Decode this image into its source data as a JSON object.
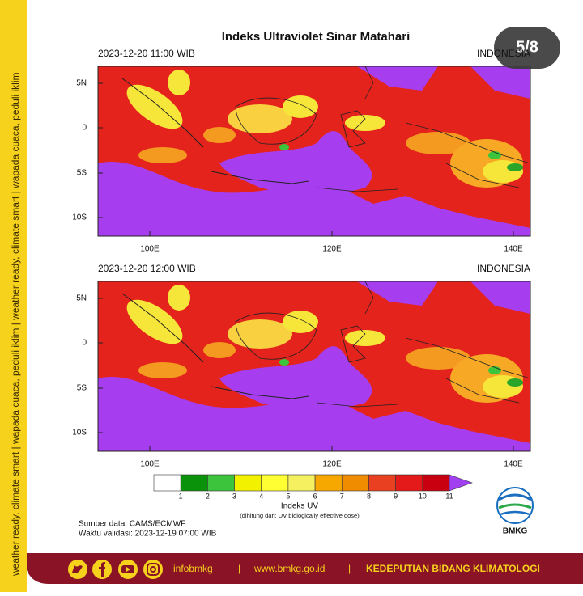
{
  "sidebar_text": "weather ready, climate smart | wapada cuaca, peduli iklim | weather ready, climate smart | wapada cuaca, peduli iklim",
  "page_indicator": "5/8",
  "title": "Indeks Ultraviolet Sinar Matahari",
  "maps": [
    {
      "time": "2023-12-20  11:00 WIB",
      "region": "INDONESIA",
      "lat_labels": [
        "5N",
        "0",
        "5S",
        "10S"
      ],
      "lon_labels": [
        "100E",
        "120E",
        "140E"
      ]
    },
    {
      "time": "2023-12-20  12:00 WIB",
      "region": "INDONESIA",
      "lat_labels": [
        "5N",
        "0",
        "5S",
        "10S"
      ],
      "lon_labels": [
        "100E",
        "120E",
        "140E"
      ]
    }
  ],
  "colorbar": {
    "ticks": [
      1,
      2,
      3,
      4,
      5,
      6,
      7,
      8,
      9,
      10,
      11
    ],
    "colors": [
      "#ffffff",
      "#0a930a",
      "#3cc43c",
      "#f2f200",
      "#ffff33",
      "#f4f060",
      "#f6a800",
      "#f08c00",
      "#e84020",
      "#e41a1a",
      "#c80010"
    ],
    "over_color": "#a040f0",
    "label": "Indeks UV",
    "note": "(dihitung dari: UV biologically effective dose)"
  },
  "source": "Sumber data: CAMS/ECMWF",
  "validity": "Waktu validasi: 2023-12-19 07:00 WIB",
  "logo_text": "BMKG",
  "footer": {
    "handle": "infobmkg",
    "separator": "|",
    "website": "www.bmkg.go.id",
    "org": "KEDEPUTIAN BIDANG KLIMATOLOGI"
  }
}
